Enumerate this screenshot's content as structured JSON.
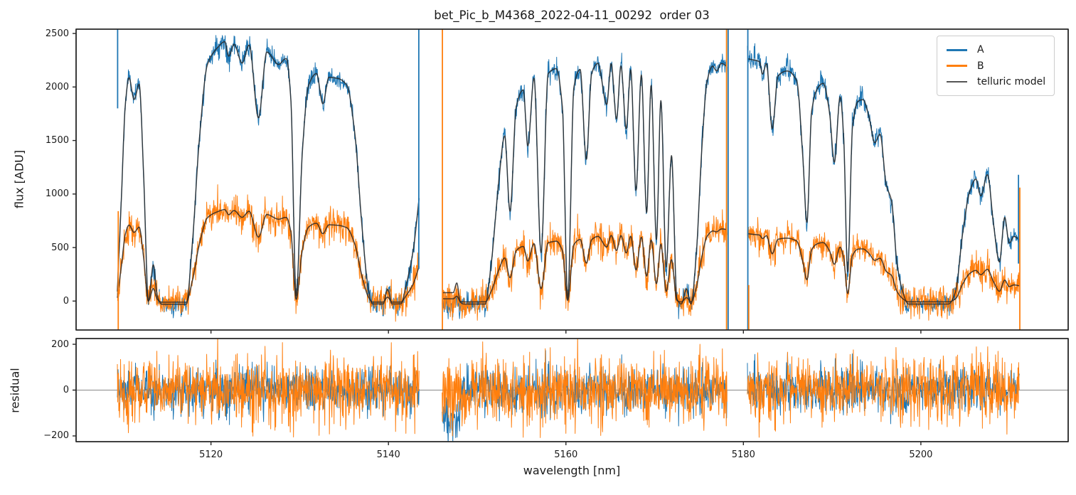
{
  "title": "bet_Pic_b_M4368_2022-04-11_00292  order 03",
  "axes": {
    "x": {
      "label": "wavelength [nm]",
      "lim": [
        5104.8,
        5216.6
      ],
      "ticks": [
        {
          "v": 5120,
          "label": "5120"
        },
        {
          "v": 5140,
          "label": "5140"
        },
        {
          "v": 5160,
          "label": "5160"
        },
        {
          "v": 5180,
          "label": "5180"
        },
        {
          "v": 5200,
          "label": "5200"
        }
      ]
    },
    "main": {
      "ylabel": "flux [ADU]",
      "lim": [
        -270,
        2540
      ],
      "ticks": [
        {
          "v": 0,
          "label": "0"
        },
        {
          "v": 500,
          "label": "500"
        },
        {
          "v": 1000,
          "label": "1000"
        },
        {
          "v": 1500,
          "label": "1500"
        },
        {
          "v": 2000,
          "label": "2000"
        },
        {
          "v": 2500,
          "label": "2500"
        }
      ]
    },
    "residual": {
      "ylabel": "residual",
      "lim": [
        -225,
        225
      ],
      "ticks": [
        {
          "v": -200,
          "label": "−200"
        },
        {
          "v": 0,
          "label": "0"
        },
        {
          "v": 200,
          "label": "200"
        }
      ]
    }
  },
  "legend": [
    {
      "label": "A",
      "color": "#1f77b4",
      "lw": 3
    },
    {
      "label": "B",
      "color": "#ff7f0e",
      "lw": 3
    },
    {
      "label": "telluric model",
      "color": "#555555",
      "lw": 2
    }
  ],
  "chart_data": {
    "type": "line",
    "series": [
      {
        "name": "A",
        "color": "#1f77b4"
      },
      {
        "name": "B",
        "color": "#ff7f0e"
      },
      {
        "name": "telluric model",
        "color": "rgba(40,40,40,0.85)"
      }
    ],
    "noise_sigma": {
      "A": 48,
      "B": 70
    },
    "seed": 1234,
    "continuum_A": [
      [
        5105,
        2200
      ],
      [
        5109,
        2240
      ],
      [
        5113,
        2420
      ],
      [
        5118,
        2450
      ],
      [
        5122,
        2460
      ],
      [
        5126,
        2440
      ],
      [
        5130,
        2330
      ],
      [
        5134,
        2290
      ],
      [
        5138,
        2220
      ],
      [
        5143.5,
        2180
      ],
      [
        5146,
        2260
      ],
      [
        5150,
        2260
      ],
      [
        5154,
        2270
      ],
      [
        5158,
        2260
      ],
      [
        5162,
        2280
      ],
      [
        5166,
        2300
      ],
      [
        5170,
        2290
      ],
      [
        5174,
        2240
      ],
      [
        5178.2,
        2330
      ],
      [
        5180.4,
        2300
      ],
      [
        5184,
        2260
      ],
      [
        5188,
        2220
      ],
      [
        5192,
        2180
      ],
      [
        5196,
        2130
      ],
      [
        5200,
        2100
      ],
      [
        5204,
        2090
      ],
      [
        5208,
        2090
      ],
      [
        5211.2,
        2080
      ],
      [
        5217,
        2080
      ]
    ],
    "continuum_B": [
      [
        5105,
        740
      ],
      [
        5109,
        760
      ],
      [
        5113,
        830
      ],
      [
        5118,
        860
      ],
      [
        5122,
        868
      ],
      [
        5126,
        850
      ],
      [
        5130,
        800
      ],
      [
        5134,
        780
      ],
      [
        5138,
        750
      ],
      [
        5143.5,
        735
      ],
      [
        5146,
        620
      ],
      [
        5150,
        600
      ],
      [
        5154,
        590
      ],
      [
        5158,
        580
      ],
      [
        5162,
        610
      ],
      [
        5166,
        640
      ],
      [
        5170,
        650
      ],
      [
        5174,
        640
      ],
      [
        5178.2,
        710
      ],
      [
        5180.4,
        640
      ],
      [
        5184,
        620
      ],
      [
        5188,
        600
      ],
      [
        5192,
        570
      ],
      [
        5196,
        545
      ],
      [
        5200,
        530
      ],
      [
        5204,
        525
      ],
      [
        5208,
        525
      ],
      [
        5211.2,
        520
      ],
      [
        5217,
        520
      ]
    ],
    "segments": [
      {
        "range": [
          5109.45,
          5143.45
        ],
        "transmission": [
          [
            5109.45,
            0.04
          ],
          [
            5109.9,
            0.42
          ],
          [
            5110.35,
            0.8
          ],
          [
            5110.75,
            0.9
          ],
          [
            5111.35,
            0.8
          ],
          [
            5111.9,
            0.85
          ],
          [
            5112.4,
            0.5
          ],
          [
            5112.95,
            0.0
          ],
          [
            5113.5,
            0.14
          ],
          [
            5113.95,
            0.02
          ],
          [
            5114.45,
            -0.012
          ],
          [
            5117.2,
            -0.012
          ],
          [
            5117.9,
            0.22
          ],
          [
            5118.7,
            0.62
          ],
          [
            5119.6,
            0.9
          ],
          [
            5120.8,
            0.965
          ],
          [
            5121.55,
            0.985
          ],
          [
            5122.0,
            0.93
          ],
          [
            5122.6,
            0.975
          ],
          [
            5123.5,
            0.905
          ],
          [
            5124.3,
            0.975
          ],
          [
            5125.35,
            0.7
          ],
          [
            5126.3,
            0.955
          ],
          [
            5127.55,
            0.92
          ],
          [
            5128.5,
            0.955
          ],
          [
            5129.0,
            0.8
          ],
          [
            5129.6,
            0.02
          ],
          [
            5130.3,
            0.6
          ],
          [
            5131.0,
            0.87
          ],
          [
            5131.9,
            0.92
          ],
          [
            5132.6,
            0.8
          ],
          [
            5133.3,
            0.91
          ],
          [
            5134.3,
            0.91
          ],
          [
            5135.3,
            0.89
          ],
          [
            5136.2,
            0.7
          ],
          [
            5137.0,
            0.32
          ],
          [
            5137.7,
            0.06
          ],
          [
            5138.2,
            -0.012
          ],
          [
            5139.4,
            -0.012
          ],
          [
            5139.9,
            0.05
          ],
          [
            5140.4,
            -0.012
          ],
          [
            5141.4,
            -0.012
          ],
          [
            5142.0,
            0.07
          ],
          [
            5142.8,
            0.22
          ],
          [
            5143.45,
            0.44
          ]
        ]
      },
      {
        "range": [
          5146.05,
          5178.15
        ],
        "transmission": [
          [
            5146.05,
            0.035
          ],
          [
            5147.3,
            0.035
          ],
          [
            5147.7,
            0.075
          ],
          [
            5148.1,
            -0.005
          ],
          [
            5148.5,
            -0.012
          ],
          [
            5150.9,
            -0.012
          ],
          [
            5151.6,
            0.16
          ],
          [
            5152.4,
            0.48
          ],
          [
            5153.1,
            0.68
          ],
          [
            5153.7,
            0.37
          ],
          [
            5154.4,
            0.8
          ],
          [
            5155.2,
            0.87
          ],
          [
            5155.7,
            0.64
          ],
          [
            5156.4,
            0.92
          ],
          [
            5157.2,
            0.2
          ],
          [
            5158.0,
            0.94
          ],
          [
            5158.9,
            0.96
          ],
          [
            5159.6,
            0.8
          ],
          [
            5160.2,
            0.01
          ],
          [
            5160.9,
            0.88
          ],
          [
            5161.6,
            0.95
          ],
          [
            5162.3,
            0.58
          ],
          [
            5162.9,
            0.93
          ],
          [
            5163.6,
            0.97
          ],
          [
            5164.6,
            0.8
          ],
          [
            5165.1,
            0.965
          ],
          [
            5165.7,
            0.74
          ],
          [
            5166.2,
            0.955
          ],
          [
            5166.8,
            0.7
          ],
          [
            5167.3,
            0.94
          ],
          [
            5167.9,
            0.45
          ],
          [
            5168.5,
            0.92
          ],
          [
            5169.1,
            0.36
          ],
          [
            5169.6,
            0.88
          ],
          [
            5170.2,
            0.25
          ],
          [
            5170.7,
            0.82
          ],
          [
            5171.3,
            0.14
          ],
          [
            5171.9,
            0.6
          ],
          [
            5172.5,
            0.01
          ],
          [
            5173.0,
            -0.012
          ],
          [
            5173.6,
            0.05
          ],
          [
            5174.1,
            -0.012
          ],
          [
            5174.7,
            0.2
          ],
          [
            5175.3,
            0.62
          ],
          [
            5175.9,
            0.9
          ],
          [
            5176.5,
            0.955
          ],
          [
            5177.0,
            0.93
          ],
          [
            5177.5,
            0.955
          ],
          [
            5178.15,
            0.94
          ]
        ]
      },
      {
        "range": [
          5180.45,
          5211.1
        ],
        "transmission": [
          [
            5180.45,
            0.985
          ],
          [
            5181.8,
            0.98
          ],
          [
            5182.15,
            0.93
          ],
          [
            5182.6,
            0.975
          ],
          [
            5183.25,
            0.71
          ],
          [
            5183.9,
            0.93
          ],
          [
            5185.0,
            0.955
          ],
          [
            5186.0,
            0.92
          ],
          [
            5186.7,
            0.6
          ],
          [
            5187.15,
            0.33
          ],
          [
            5187.7,
            0.8
          ],
          [
            5188.4,
            0.9
          ],
          [
            5189.0,
            0.92
          ],
          [
            5189.7,
            0.8
          ],
          [
            5190.25,
            0.59
          ],
          [
            5190.9,
            0.87
          ],
          [
            5191.3,
            0.7
          ],
          [
            5191.75,
            0.125
          ],
          [
            5192.3,
            0.75
          ],
          [
            5192.9,
            0.86
          ],
          [
            5193.5,
            0.87
          ],
          [
            5194.15,
            0.8
          ],
          [
            5194.8,
            0.69
          ],
          [
            5195.4,
            0.73
          ],
          [
            5196.1,
            0.51
          ],
          [
            5196.7,
            0.44
          ],
          [
            5197.3,
            0.17
          ],
          [
            5197.9,
            0.05
          ],
          [
            5198.6,
            -0.013
          ],
          [
            5203.1,
            -0.013
          ],
          [
            5203.9,
            0.04
          ],
          [
            5204.7,
            0.3
          ],
          [
            5205.5,
            0.49
          ],
          [
            5206.2,
            0.545
          ],
          [
            5206.75,
            0.47
          ],
          [
            5207.5,
            0.565
          ],
          [
            5208.2,
            0.34
          ],
          [
            5208.85,
            0.175
          ],
          [
            5209.45,
            0.375
          ],
          [
            5209.95,
            0.26
          ],
          [
            5210.5,
            0.29
          ],
          [
            5211.1,
            0.275
          ]
        ]
      }
    ],
    "data_offsets": [
      {
        "series": "A",
        "range": [
          5146.05,
          5148.1
        ],
        "value": -130
      }
    ],
    "edge_spikes": [
      {
        "series": "A",
        "x": 5109.48,
        "y": [
          1800,
          2540
        ]
      },
      {
        "series": "B",
        "x": 5109.55,
        "y": [
          -270,
          840
        ]
      },
      {
        "series": "A",
        "x": 5143.42,
        "y": [
          300,
          2540
        ]
      },
      {
        "series": "B",
        "x": 5146.08,
        "y": [
          -270,
          2540
        ]
      },
      {
        "series": "B",
        "x": 5178.1,
        "y": [
          -270,
          2540
        ]
      },
      {
        "series": "A",
        "x": 5178.28,
        "y": [
          -270,
          2540
        ]
      },
      {
        "series": "A",
        "x": 5180.5,
        "y": [
          -270,
          2540
        ]
      },
      {
        "series": "B",
        "x": 5180.6,
        "y": [
          -270,
          150
        ]
      },
      {
        "series": "A",
        "x": 5211.0,
        "y": [
          350,
          1180
        ]
      },
      {
        "series": "B",
        "x": 5211.15,
        "y": [
          -270,
          1060
        ]
      }
    ],
    "residual": {
      "zero_line": true,
      "zero_line_color": "#888888"
    }
  },
  "style": {
    "frame_color": "#262626",
    "text_color": "#1a1a1a",
    "model_stroke": "rgba(40,40,40,0.85)"
  }
}
